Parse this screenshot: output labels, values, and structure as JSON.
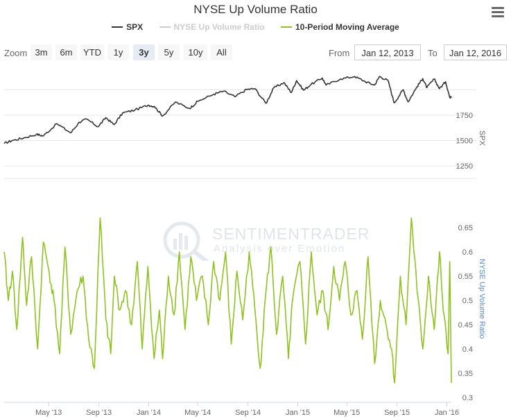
{
  "title": "NYSE Up Volume Ratio",
  "legend": [
    {
      "label": "SPX",
      "color": "#333333",
      "dim": false
    },
    {
      "label": "NYSE Up Volume Ratio",
      "color": "#cccccc",
      "dim": true
    },
    {
      "label": "10-Period Moving Average",
      "color": "#8dc21f",
      "dim": false
    }
  ],
  "zoom": {
    "label": "Zoom",
    "buttons": [
      "3m",
      "6m",
      "YTD",
      "1y",
      "3y",
      "5y",
      "10y",
      "All"
    ],
    "active": "3y"
  },
  "range": {
    "from_label": "From",
    "from_value": "Jan 12, 2013",
    "to_label": "To",
    "to_value": "Jan 12, 2016"
  },
  "watermark": {
    "line1": "SENTIMENTRADER",
    "line2": "Analysis over Emotion"
  },
  "chart_data": [
    {
      "type": "line",
      "title": "",
      "ylabel": "SPX",
      "yticks": [
        1250,
        1500,
        1750
      ],
      "ylim": [
        1025,
        2200
      ],
      "grid": true,
      "series": [
        {
          "name": "SPX",
          "color": "#333333",
          "x": [
            "2013-01-12",
            "2013-02-01",
            "2013-03-01",
            "2013-04-01",
            "2013-04-18",
            "2013-05-21",
            "2013-06-24",
            "2013-07-15",
            "2013-08-02",
            "2013-08-30",
            "2013-09-18",
            "2013-10-08",
            "2013-10-29",
            "2013-11-28",
            "2013-12-31",
            "2014-01-15",
            "2014-02-04",
            "2014-03-07",
            "2014-04-11",
            "2014-05-01",
            "2014-06-09",
            "2014-07-03",
            "2014-07-31",
            "2014-08-29",
            "2014-09-18",
            "2014-10-15",
            "2014-11-03",
            "2014-11-28",
            "2014-12-16",
            "2014-12-29",
            "2015-01-15",
            "2015-02-02",
            "2015-03-02",
            "2015-03-11",
            "2015-04-15",
            "2015-05-20",
            "2015-06-15",
            "2015-07-08",
            "2015-07-20",
            "2015-08-10",
            "2015-08-25",
            "2015-09-16",
            "2015-09-28",
            "2015-10-20",
            "2015-11-03",
            "2015-11-13",
            "2015-12-01",
            "2015-12-14",
            "2015-12-29",
            "2016-01-08",
            "2016-01-12"
          ],
          "y": [
            1470,
            1500,
            1525,
            1560,
            1545,
            1665,
            1575,
            1680,
            1710,
            1635,
            1725,
            1655,
            1770,
            1800,
            1848,
            1835,
            1740,
            1878,
            1815,
            1885,
            1955,
            1985,
            1930,
            2003,
            2010,
            1865,
            2018,
            2070,
            1972,
            2090,
            1995,
            2050,
            2115,
            2045,
            2105,
            2130,
            2080,
            2045,
            2130,
            2090,
            1870,
            2000,
            1880,
            2030,
            2110,
            2020,
            2105,
            2010,
            2078,
            1925,
            1935
          ]
        }
      ]
    },
    {
      "type": "line",
      "title": "",
      "ylabel": "NYSE Up Volume Ratio",
      "yticks": [
        0.3,
        0.35,
        0.4,
        0.45,
        0.5,
        0.55,
        0.6,
        0.65
      ],
      "ylim": [
        0.29,
        0.69
      ],
      "grid": false,
      "series": [
        {
          "name": "10-Period Moving Average",
          "color": "#8dc21f",
          "x": [
            "2013-01-12",
            "2013-01-22",
            "2013-02-01",
            "2013-02-12",
            "2013-02-26",
            "2013-03-08",
            "2013-03-20",
            "2013-04-04",
            "2013-04-18",
            "2013-05-02",
            "2013-05-14",
            "2013-05-28",
            "2013-06-10",
            "2013-06-24",
            "2013-07-10",
            "2013-07-24",
            "2013-08-07",
            "2013-08-21",
            "2013-09-04",
            "2013-09-18",
            "2013-09-30",
            "2013-10-09",
            "2013-10-22",
            "2013-11-05",
            "2013-11-20",
            "2013-12-04",
            "2013-12-16",
            "2013-12-30",
            "2014-01-14",
            "2014-01-27",
            "2014-02-04",
            "2014-02-18",
            "2014-03-04",
            "2014-03-17",
            "2014-03-31",
            "2014-04-14",
            "2014-04-28",
            "2014-05-12",
            "2014-05-27",
            "2014-06-09",
            "2014-06-24",
            "2014-07-08",
            "2014-07-22",
            "2014-08-05",
            "2014-08-19",
            "2014-09-04",
            "2014-09-18",
            "2014-10-01",
            "2014-10-13",
            "2014-10-27",
            "2014-11-10",
            "2014-11-25",
            "2014-12-09",
            "2014-12-19",
            "2015-01-06",
            "2015-01-20",
            "2015-02-03",
            "2015-02-17",
            "2015-03-03",
            "2015-03-16",
            "2015-03-30",
            "2015-04-13",
            "2015-04-27",
            "2015-05-11",
            "2015-05-26",
            "2015-06-08",
            "2015-06-22",
            "2015-07-08",
            "2015-07-22",
            "2015-08-05",
            "2015-08-19",
            "2015-08-26",
            "2015-09-09",
            "2015-09-23",
            "2015-10-06",
            "2015-10-20",
            "2015-11-03",
            "2015-11-17",
            "2015-12-01",
            "2015-12-14",
            "2015-12-23",
            "2016-01-04",
            "2016-01-08",
            "2016-01-12"
          ],
          "y": [
            0.6,
            0.5,
            0.56,
            0.44,
            0.63,
            0.49,
            0.59,
            0.4,
            0.62,
            0.56,
            0.5,
            0.39,
            0.61,
            0.43,
            0.52,
            0.55,
            0.42,
            0.36,
            0.67,
            0.46,
            0.39,
            0.55,
            0.48,
            0.52,
            0.45,
            0.58,
            0.4,
            0.57,
            0.38,
            0.48,
            0.38,
            0.55,
            0.47,
            0.6,
            0.44,
            0.59,
            0.5,
            0.55,
            0.45,
            0.58,
            0.5,
            0.6,
            0.41,
            0.56,
            0.46,
            0.6,
            0.48,
            0.36,
            0.5,
            0.61,
            0.43,
            0.55,
            0.38,
            0.5,
            0.58,
            0.41,
            0.6,
            0.47,
            0.52,
            0.44,
            0.57,
            0.5,
            0.58,
            0.47,
            0.52,
            0.42,
            0.59,
            0.37,
            0.5,
            0.45,
            0.4,
            0.33,
            0.55,
            0.45,
            0.67,
            0.52,
            0.4,
            0.55,
            0.44,
            0.6,
            0.48,
            0.39,
            0.58,
            0.33
          ]
        }
      ]
    }
  ],
  "xaxis": {
    "ticks": [
      "May '13",
      "Sep '13",
      "Jan '14",
      "May '14",
      "Sep '14",
      "Jan '15",
      "May '15",
      "Sep '15",
      "Jan '16"
    ],
    "tick_dates": [
      "2013-05-01",
      "2013-09-01",
      "2014-01-01",
      "2014-05-01",
      "2014-09-01",
      "2015-01-01",
      "2015-05-01",
      "2015-09-01",
      "2016-01-01"
    ],
    "start": "2013-01-12",
    "end": "2016-01-12"
  }
}
